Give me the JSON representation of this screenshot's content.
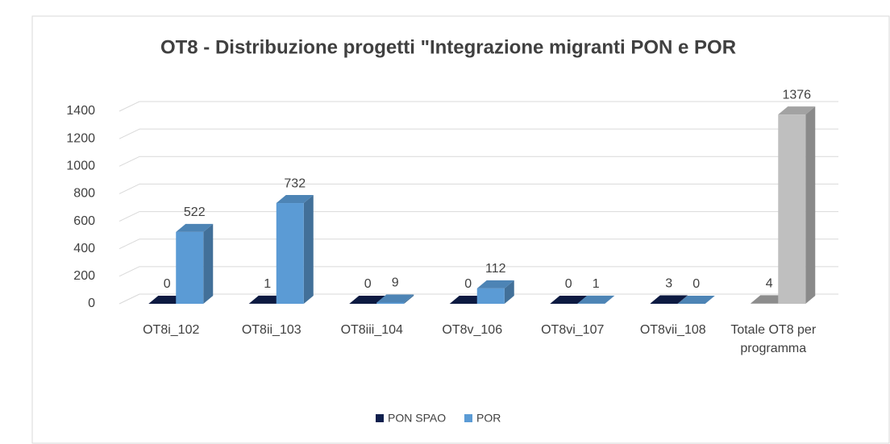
{
  "chart_data": {
    "type": "bar3d",
    "title": "OT8 - Distribuzione progetti \"Integrazione migranti  PON e POR",
    "categories": [
      "OT8i_102",
      "OT8ii_103",
      "OT8iii_104",
      "OT8v_106",
      "OT8vi_107",
      "OT8vii_108",
      "Totale OT8 per programma"
    ],
    "series": [
      {
        "name": "PON SPAO",
        "color": "#0f1f4d",
        "colors": [
          "#0f1f4d",
          "#0f1f4d",
          "#0f1f4d",
          "#0f1f4d",
          "#0f1f4d",
          "#0f1f4d",
          "#a6a6a6"
        ],
        "values": [
          0,
          1,
          0,
          0,
          0,
          3,
          4
        ]
      },
      {
        "name": "POR",
        "color": "#5b9bd5",
        "colors": [
          "#5b9bd5",
          "#5b9bd5",
          "#5b9bd5",
          "#5b9bd5",
          "#5b9bd5",
          "#5b9bd5",
          "#bfbfbf"
        ],
        "values": [
          522,
          732,
          9,
          112,
          1,
          0,
          1376
        ]
      }
    ],
    "ylim": [
      0,
      1400
    ],
    "yticks": [
      0,
      200,
      400,
      600,
      800,
      1000,
      1200,
      1400
    ],
    "grid": true,
    "legend": "bottom"
  }
}
